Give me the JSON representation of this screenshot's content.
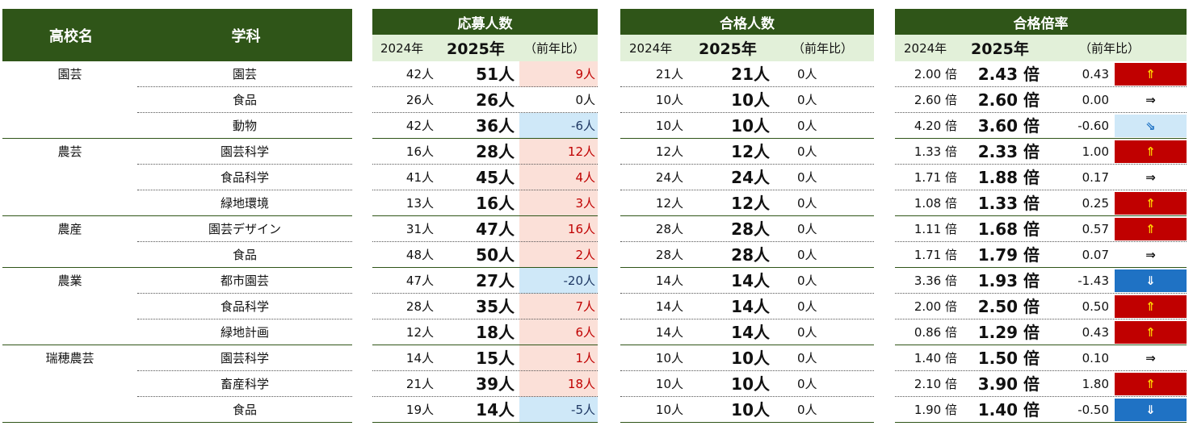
{
  "headers": {
    "school": "高校名",
    "dept": "学科",
    "applicants": "応募人数",
    "passed": "合格人数",
    "ratio": "合格倍率",
    "y2024": "2024年",
    "y2025": "2025年",
    "yoy": "（前年比）"
  },
  "rows": [
    {
      "school": "園芸",
      "dept": "園芸",
      "a24": "42人",
      "a25": "51人",
      "ad": "9人",
      "ad_sign": "pos",
      "p24": "21人",
      "p25": "21人",
      "pd": "0人",
      "r24": "2.00 倍",
      "r25": "2.43 倍",
      "rd": "0.43",
      "arrow": "⇑",
      "arrow_type": "up",
      "sep": "dotted"
    },
    {
      "school": "",
      "dept": "食品",
      "a24": "26人",
      "a25": "26人",
      "ad": "0人",
      "ad_sign": "zero",
      "p24": "10人",
      "p25": "10人",
      "pd": "0人",
      "r24": "2.60 倍",
      "r25": "2.60 倍",
      "rd": "0.00",
      "arrow": "⇒",
      "arrow_type": "flat",
      "sep": "dotted"
    },
    {
      "school": "",
      "dept": "動物",
      "a24": "42人",
      "a25": "36人",
      "ad": "-6人",
      "ad_sign": "neg",
      "p24": "10人",
      "p25": "10人",
      "pd": "0人",
      "r24": "4.20 倍",
      "r25": "3.60 倍",
      "rd": "-0.60",
      "arrow": "⇘",
      "arrow_type": "diag",
      "sep": "solid"
    },
    {
      "school": "農芸",
      "dept": "園芸科学",
      "a24": "16人",
      "a25": "28人",
      "ad": "12人",
      "ad_sign": "pos",
      "p24": "12人",
      "p25": "12人",
      "pd": "0人",
      "r24": "1.33 倍",
      "r25": "2.33 倍",
      "rd": "1.00",
      "arrow": "⇑",
      "arrow_type": "up",
      "sep": "dotted"
    },
    {
      "school": "",
      "dept": "食品科学",
      "a24": "41人",
      "a25": "45人",
      "ad": "4人",
      "ad_sign": "pos",
      "p24": "24人",
      "p25": "24人",
      "pd": "0人",
      "r24": "1.71 倍",
      "r25": "1.88 倍",
      "rd": "0.17",
      "arrow": "⇒",
      "arrow_type": "flat",
      "sep": "dotted"
    },
    {
      "school": "",
      "dept": "緑地環境",
      "a24": "13人",
      "a25": "16人",
      "ad": "3人",
      "ad_sign": "pos",
      "p24": "12人",
      "p25": "12人",
      "pd": "0人",
      "r24": "1.08 倍",
      "r25": "1.33 倍",
      "rd": "0.25",
      "arrow": "⇑",
      "arrow_type": "up",
      "sep": "solid"
    },
    {
      "school": "農産",
      "dept": "園芸デザイン",
      "a24": "31人",
      "a25": "47人",
      "ad": "16人",
      "ad_sign": "pos",
      "p24": "28人",
      "p25": "28人",
      "pd": "0人",
      "r24": "1.11 倍",
      "r25": "1.68 倍",
      "rd": "0.57",
      "arrow": "⇑",
      "arrow_type": "up",
      "sep": "dotted"
    },
    {
      "school": "",
      "dept": "食品",
      "a24": "48人",
      "a25": "50人",
      "ad": "2人",
      "ad_sign": "pos",
      "p24": "28人",
      "p25": "28人",
      "pd": "0人",
      "r24": "1.71 倍",
      "r25": "1.79 倍",
      "rd": "0.07",
      "arrow": "⇒",
      "arrow_type": "flat",
      "sep": "solid"
    },
    {
      "school": "農業",
      "dept": "都市園芸",
      "a24": "47人",
      "a25": "27人",
      "ad": "-20人",
      "ad_sign": "neg",
      "p24": "14人",
      "p25": "14人",
      "pd": "0人",
      "r24": "3.36 倍",
      "r25": "1.93 倍",
      "rd": "-1.43",
      "arrow": "⇓",
      "arrow_type": "downblue",
      "sep": "dotted"
    },
    {
      "school": "",
      "dept": "食品科学",
      "a24": "28人",
      "a25": "35人",
      "ad": "7人",
      "ad_sign": "pos",
      "p24": "14人",
      "p25": "14人",
      "pd": "0人",
      "r24": "2.00 倍",
      "r25": "2.50 倍",
      "rd": "0.50",
      "arrow": "⇑",
      "arrow_type": "up",
      "sep": "dotted"
    },
    {
      "school": "",
      "dept": "緑地計画",
      "a24": "12人",
      "a25": "18人",
      "ad": "6人",
      "ad_sign": "pos",
      "p24": "14人",
      "p25": "14人",
      "pd": "0人",
      "r24": "0.86 倍",
      "r25": "1.29 倍",
      "rd": "0.43",
      "arrow": "⇑",
      "arrow_type": "up",
      "sep": "solid"
    },
    {
      "school": "瑞穂農芸",
      "dept": "園芸科学",
      "a24": "14人",
      "a25": "15人",
      "ad": "1人",
      "ad_sign": "pos",
      "p24": "10人",
      "p25": "10人",
      "pd": "0人",
      "r24": "1.40 倍",
      "r25": "1.50 倍",
      "rd": "0.10",
      "arrow": "⇒",
      "arrow_type": "flat",
      "sep": "dotted"
    },
    {
      "school": "",
      "dept": "畜産科学",
      "a24": "21人",
      "a25": "39人",
      "ad": "18人",
      "ad_sign": "pos",
      "p24": "10人",
      "p25": "10人",
      "pd": "0人",
      "r24": "2.10 倍",
      "r25": "3.90 倍",
      "rd": "1.80",
      "arrow": "⇑",
      "arrow_type": "up",
      "sep": "dotted"
    },
    {
      "school": "",
      "dept": "食品",
      "a24": "19人",
      "a25": "14人",
      "ad": "-5人",
      "ad_sign": "neg",
      "p24": "10人",
      "p25": "10人",
      "pd": "0人",
      "r24": "1.90 倍",
      "r25": "1.40 倍",
      "rd": "-0.50",
      "arrow": "⇓",
      "arrow_type": "downblue",
      "sep": "solid"
    }
  ]
}
